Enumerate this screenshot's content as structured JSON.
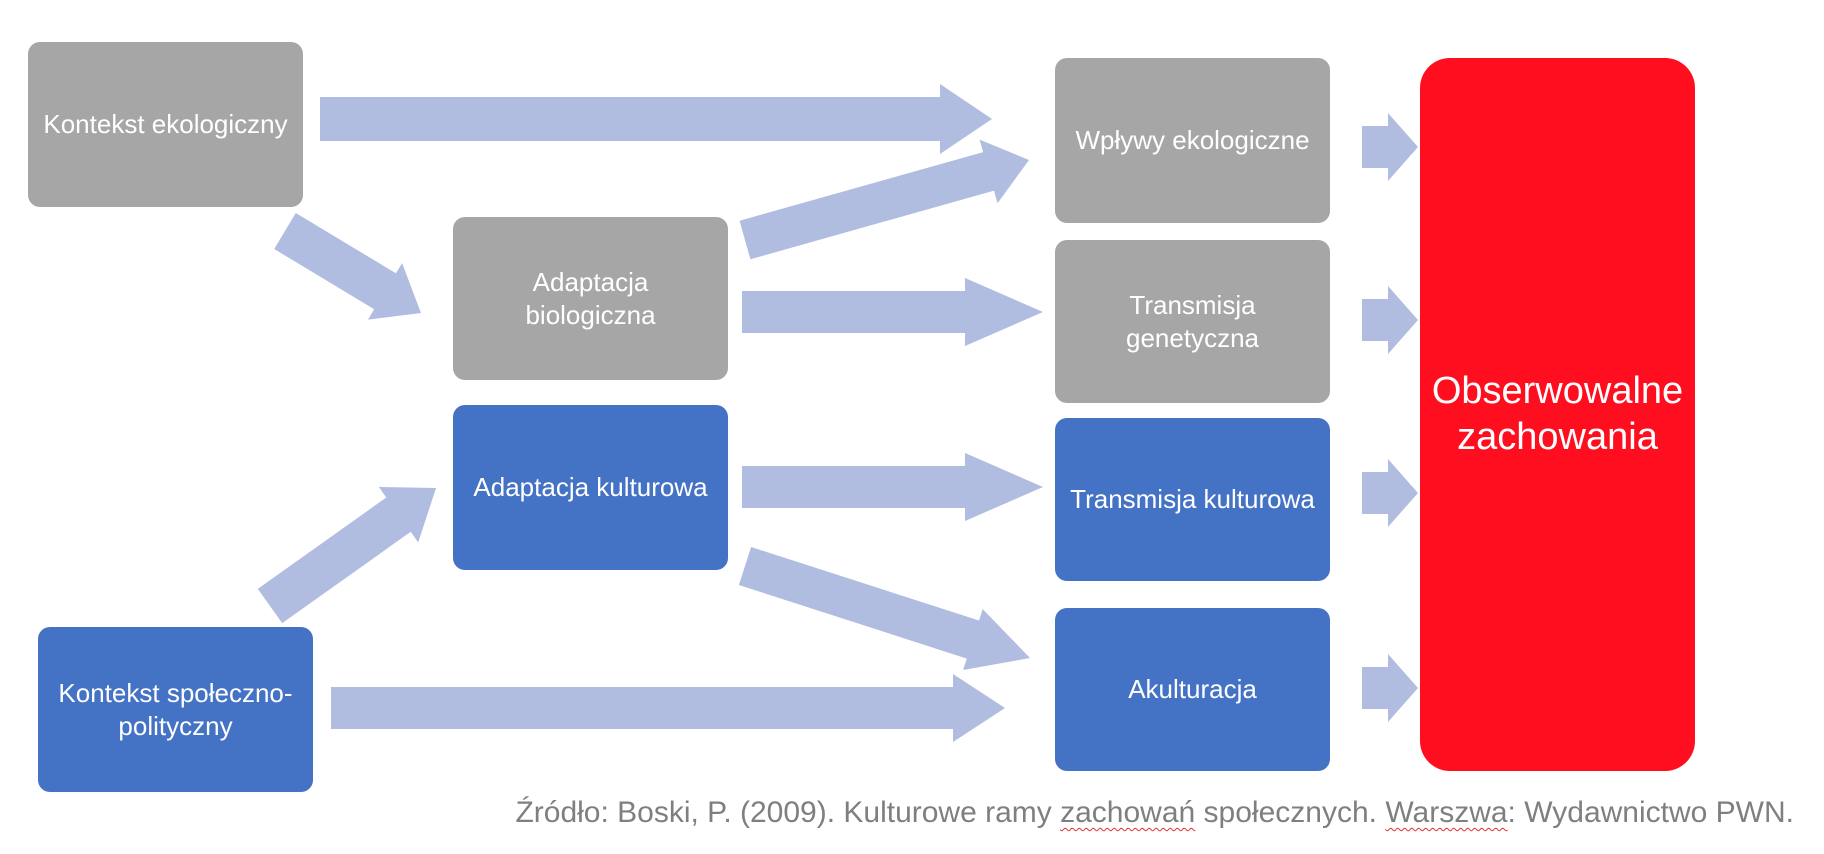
{
  "colors": {
    "gray_box": "#a6a6a6",
    "blue_box": "#4472c4",
    "outcome_box": "#ff0e1f",
    "arrow": "#b0bde0",
    "source_text": "#7f7f7f"
  },
  "nodes": {
    "ecological_context": "Kontekst ekologiczny",
    "sociopolitical_context": "Kontekst społeczno-\npolityczny",
    "biological_adaptation": "Adaptacja\nbiologiczna",
    "cultural_adaptation": "Adaptacja kulturowa",
    "ecological_influences": "Wpływy ekologiczne",
    "genetic_transmission": "Transmisja\ngenetyczna",
    "cultural_transmission": "Transmisja kulturowa",
    "acculturation": "Akulturacja",
    "observable_behaviors": "Obserwowalne\nzachowania"
  },
  "source": {
    "p1": "Źródło: Boski, P. (2009). Kulturowe ramy ",
    "w1": "zachowań",
    "p2": " społecznych. ",
    "w2": "Warszwa",
    "p3": ": Wydawnictwo PWN."
  }
}
